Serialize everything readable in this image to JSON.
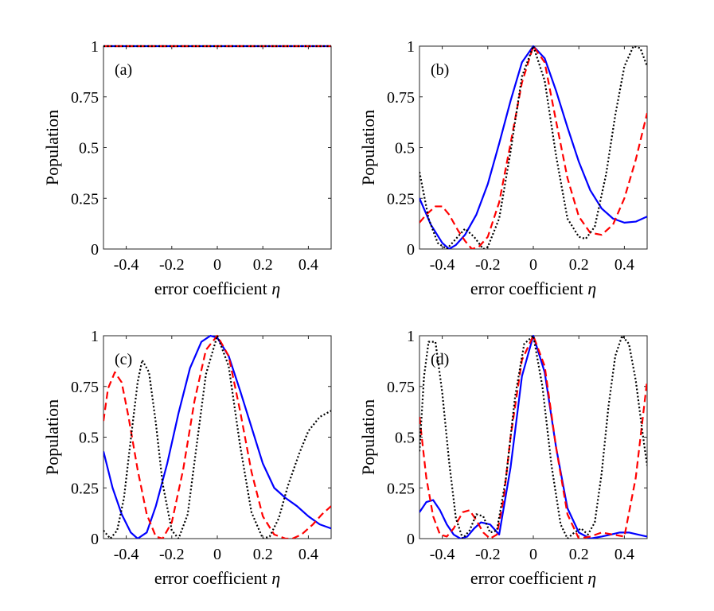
{
  "figure": {
    "xlabel": "error coefficient",
    "xlabel_symbol": "η",
    "ylabel": "Population",
    "xticks": [
      "-0.4",
      "-0.2",
      "0",
      "0.2",
      "0.4"
    ],
    "yticks": [
      "0",
      "0.25",
      "0.5",
      "0.75",
      "1"
    ]
  },
  "chart_data": [
    {
      "type": "line",
      "panel_label": "(a)",
      "xlabel": "error coefficient η",
      "ylabel": "Population",
      "xlim": [
        -0.5,
        0.5
      ],
      "ylim": [
        0,
        1
      ],
      "series": [
        {
          "name": "blue-solid",
          "color": "#0000ff",
          "style": "solid",
          "x": [
            -0.5,
            -0.25,
            0,
            0.25,
            0.5
          ],
          "y": [
            1,
            1,
            1,
            1,
            1
          ]
        },
        {
          "name": "red-dashed",
          "color": "#ff0000",
          "style": "dashed",
          "x": [
            -0.5,
            -0.25,
            0,
            0.25,
            0.5
          ],
          "y": [
            1,
            1,
            1,
            1,
            1
          ]
        },
        {
          "name": "black-dotted",
          "color": "#000000",
          "style": "dotted",
          "x": [
            -0.5,
            -0.25,
            0,
            0.25,
            0.5
          ],
          "y": [
            1,
            1,
            1,
            1,
            1
          ]
        }
      ]
    },
    {
      "type": "line",
      "panel_label": "(b)",
      "xlabel": "error coefficient η",
      "ylabel": "Population",
      "xlim": [
        -0.5,
        0.5
      ],
      "ylim": [
        0,
        1
      ],
      "series": [
        {
          "name": "blue-solid",
          "color": "#0000ff",
          "style": "solid",
          "x": [
            -0.5,
            -0.45,
            -0.4,
            -0.37,
            -0.34,
            -0.3,
            -0.25,
            -0.2,
            -0.15,
            -0.1,
            -0.05,
            0,
            0.05,
            0.1,
            0.15,
            0.2,
            0.25,
            0.3,
            0.35,
            0.4,
            0.45,
            0.5
          ],
          "y": [
            0.25,
            0.12,
            0.03,
            0.0,
            0.02,
            0.07,
            0.17,
            0.32,
            0.52,
            0.73,
            0.92,
            1.0,
            0.94,
            0.78,
            0.6,
            0.43,
            0.29,
            0.2,
            0.15,
            0.13,
            0.135,
            0.16
          ]
        },
        {
          "name": "red-dashed",
          "color": "#ff0000",
          "style": "dashed",
          "x": [
            -0.5,
            -0.47,
            -0.43,
            -0.4,
            -0.37,
            -0.33,
            -0.3,
            -0.27,
            -0.24,
            -0.2,
            -0.15,
            -0.1,
            -0.05,
            0,
            0.05,
            0.1,
            0.15,
            0.2,
            0.25,
            0.3,
            0.35,
            0.4,
            0.45,
            0.5
          ],
          "y": [
            0.13,
            0.17,
            0.21,
            0.21,
            0.17,
            0.09,
            0.04,
            0.0,
            0.01,
            0.06,
            0.23,
            0.52,
            0.82,
            1.0,
            0.92,
            0.63,
            0.35,
            0.16,
            0.08,
            0.07,
            0.12,
            0.25,
            0.44,
            0.67
          ]
        },
        {
          "name": "black-dotted",
          "color": "#000000",
          "style": "dotted",
          "x": [
            -0.5,
            -0.46,
            -0.42,
            -0.38,
            -0.34,
            -0.3,
            -0.26,
            -0.22,
            -0.2,
            -0.15,
            -0.1,
            -0.05,
            0,
            0.05,
            0.1,
            0.15,
            0.2,
            0.23,
            0.27,
            0.32,
            0.36,
            0.4,
            0.44,
            0.47,
            0.5
          ],
          "y": [
            0.38,
            0.15,
            0.03,
            0.0,
            0.05,
            0.1,
            0.06,
            0.0,
            0.01,
            0.15,
            0.48,
            0.85,
            1.0,
            0.83,
            0.46,
            0.15,
            0.06,
            0.05,
            0.11,
            0.37,
            0.66,
            0.9,
            1.0,
            0.99,
            0.9
          ]
        }
      ]
    },
    {
      "type": "line",
      "panel_label": "(c)",
      "xlabel": "error coefficient η",
      "ylabel": "Population",
      "xlim": [
        -0.5,
        0.5
      ],
      "ylim": [
        0,
        1
      ],
      "series": [
        {
          "name": "blue-solid",
          "color": "#0000ff",
          "style": "solid",
          "x": [
            -0.5,
            -0.46,
            -0.42,
            -0.38,
            -0.35,
            -0.31,
            -0.27,
            -0.22,
            -0.17,
            -0.12,
            -0.07,
            -0.03,
            0,
            0.05,
            0.1,
            0.15,
            0.2,
            0.25,
            0.3,
            0.35,
            0.4,
            0.45,
            0.5
          ],
          "y": [
            0.43,
            0.25,
            0.12,
            0.03,
            0.0,
            0.03,
            0.16,
            0.37,
            0.62,
            0.84,
            0.97,
            1.0,
            0.99,
            0.9,
            0.73,
            0.55,
            0.37,
            0.25,
            0.2,
            0.16,
            0.11,
            0.07,
            0.05
          ]
        },
        {
          "name": "red-dashed",
          "color": "#ff0000",
          "style": "dashed",
          "x": [
            -0.5,
            -0.48,
            -0.45,
            -0.42,
            -0.39,
            -0.35,
            -0.31,
            -0.27,
            -0.24,
            -0.2,
            -0.15,
            -0.1,
            -0.05,
            0,
            0.05,
            0.1,
            0.15,
            0.2,
            0.25,
            0.3,
            0.33,
            0.37,
            0.42,
            0.46,
            0.5
          ],
          "y": [
            0.58,
            0.74,
            0.82,
            0.77,
            0.6,
            0.34,
            0.12,
            0.01,
            0.0,
            0.08,
            0.34,
            0.68,
            0.93,
            1.0,
            0.9,
            0.63,
            0.33,
            0.11,
            0.02,
            0.0,
            0.0,
            0.02,
            0.07,
            0.12,
            0.16
          ]
        },
        {
          "name": "black-dotted",
          "color": "#000000",
          "style": "dotted",
          "x": [
            -0.5,
            -0.47,
            -0.44,
            -0.41,
            -0.38,
            -0.35,
            -0.33,
            -0.3,
            -0.27,
            -0.24,
            -0.2,
            -0.17,
            -0.13,
            -0.1,
            -0.05,
            0,
            0.05,
            0.1,
            0.15,
            0.2,
            0.23,
            0.27,
            0.31,
            0.36,
            0.4,
            0.45,
            0.5
          ],
          "y": [
            0.04,
            0.0,
            0.04,
            0.2,
            0.49,
            0.77,
            0.88,
            0.82,
            0.57,
            0.27,
            0.04,
            0.0,
            0.12,
            0.38,
            0.81,
            1.0,
            0.85,
            0.46,
            0.13,
            0.0,
            0.01,
            0.1,
            0.26,
            0.42,
            0.53,
            0.6,
            0.63
          ]
        }
      ]
    },
    {
      "type": "line",
      "panel_label": "(d)",
      "xlabel": "error coefficient η",
      "ylabel": "Population",
      "xlim": [
        -0.5,
        0.5
      ],
      "ylim": [
        0,
        1
      ],
      "series": [
        {
          "name": "blue-solid",
          "color": "#0000ff",
          "style": "solid",
          "x": [
            -0.5,
            -0.47,
            -0.44,
            -0.41,
            -0.38,
            -0.35,
            -0.32,
            -0.29,
            -0.26,
            -0.23,
            -0.19,
            -0.15,
            -0.1,
            -0.05,
            0,
            0.05,
            0.1,
            0.15,
            0.2,
            0.25,
            0.3,
            0.34,
            0.38,
            0.42,
            0.46,
            0.5
          ],
          "y": [
            0.13,
            0.18,
            0.19,
            0.14,
            0.07,
            0.02,
            0.0,
            0.01,
            0.05,
            0.08,
            0.07,
            0.02,
            0.35,
            0.8,
            1.0,
            0.82,
            0.45,
            0.15,
            0.03,
            0.0,
            0.01,
            0.02,
            0.03,
            0.03,
            0.02,
            0.01
          ]
        },
        {
          "name": "red-dashed",
          "color": "#ff0000",
          "style": "dashed",
          "x": [
            -0.5,
            -0.47,
            -0.44,
            -0.41,
            -0.38,
            -0.35,
            -0.31,
            -0.28,
            -0.25,
            -0.22,
            -0.19,
            -0.16,
            -0.13,
            -0.1,
            -0.05,
            0,
            0.05,
            0.1,
            0.15,
            0.2,
            0.25,
            0.3,
            0.35,
            0.4,
            0.45,
            0.5
          ],
          "y": [
            0.6,
            0.3,
            0.11,
            0.02,
            0.01,
            0.05,
            0.13,
            0.14,
            0.09,
            0.03,
            0.0,
            0.02,
            0.2,
            0.5,
            0.88,
            1.0,
            0.85,
            0.45,
            0.12,
            0.0,
            0.01,
            0.03,
            0.02,
            0.01,
            0.3,
            0.78
          ]
        },
        {
          "name": "black-dotted",
          "color": "#000000",
          "style": "dotted",
          "x": [
            -0.5,
            -0.48,
            -0.46,
            -0.43,
            -0.4,
            -0.37,
            -0.34,
            -0.31,
            -0.28,
            -0.25,
            -0.22,
            -0.19,
            -0.16,
            -0.12,
            -0.08,
            -0.04,
            0,
            0.04,
            0.08,
            0.12,
            0.15,
            0.18,
            0.21,
            0.24,
            0.27,
            0.3,
            0.33,
            0.36,
            0.39,
            0.42,
            0.45,
            0.48,
            0.5
          ],
          "y": [
            0.43,
            0.8,
            0.97,
            0.97,
            0.72,
            0.38,
            0.1,
            0.0,
            0.04,
            0.12,
            0.11,
            0.03,
            0.04,
            0.3,
            0.7,
            0.96,
            1.0,
            0.75,
            0.36,
            0.07,
            0.0,
            0.03,
            0.05,
            0.02,
            0.08,
            0.32,
            0.65,
            0.9,
            1.0,
            0.96,
            0.78,
            0.52,
            0.36
          ]
        }
      ]
    }
  ]
}
